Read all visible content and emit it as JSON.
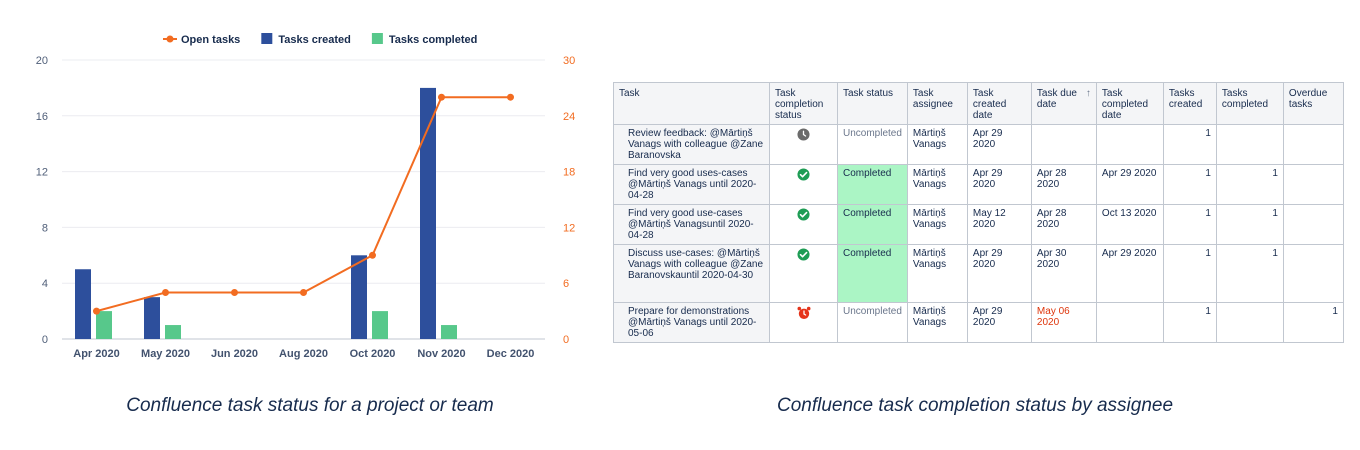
{
  "chart_data": {
    "type": "bar",
    "categories": [
      "Apr 2020",
      "May 2020",
      "Jun 2020",
      "Aug 2020",
      "Oct 2020",
      "Nov 2020",
      "Dec 2020"
    ],
    "series": [
      {
        "name": "Tasks created",
        "type": "bar",
        "axis": "left",
        "values": [
          5,
          3,
          0,
          0,
          6,
          18,
          0
        ],
        "color": "#2d4f9c"
      },
      {
        "name": "Tasks completed",
        "type": "bar",
        "axis": "left",
        "values": [
          2,
          1,
          0,
          0,
          2,
          1,
          0
        ],
        "color": "#57c88b"
      },
      {
        "name": "Open tasks",
        "type": "line",
        "axis": "right",
        "values": [
          3,
          5,
          5,
          5,
          9,
          26,
          26
        ],
        "color": "#f26c21"
      }
    ],
    "legend_order": [
      "Open tasks",
      "Tasks created",
      "Tasks completed"
    ],
    "legend_position": "top-center",
    "ylim_left": [
      0,
      20
    ],
    "yticks_left": [
      0,
      4,
      8,
      12,
      16,
      20
    ],
    "ylim_right": [
      0,
      30
    ],
    "yticks_right": [
      0,
      6,
      12,
      18,
      24,
      30
    ],
    "grid": true
  },
  "captions": {
    "left": "Confluence task status for a project or team",
    "right": "Confluence task completion status by assignee"
  },
  "table": {
    "headers": {
      "task": "Task",
      "completion": "Task completion status",
      "status": "Task status",
      "assignee": "Task assignee",
      "created": "Task created date",
      "due": "Task due date",
      "sort_arrow": "↑",
      "completed_date": "Task completed date",
      "tasks_created": "Tasks created",
      "tasks_completed": "Tasks completed",
      "overdue": "Overdue tasks"
    },
    "rows": [
      {
        "task": "Review feedback: @Mārtiņš Vanags with colleague @Zane Baranovska",
        "icon": "clock-icon",
        "status": "Uncompleted",
        "assignee": "Mārtiņš Vanags",
        "created": "Apr 29 2020",
        "due": "",
        "completed_date": "",
        "tasks_created": "1",
        "tasks_completed": "",
        "overdue": ""
      },
      {
        "task": "Find very good uses-cases @Mārtiņš Vanags until 2020-04-28",
        "icon": "check-circle-icon",
        "status": "Completed",
        "assignee": "Mārtiņš Vanags",
        "created": "Apr 29 2020",
        "due": "Apr 28 2020",
        "completed_date": "Apr 29 2020",
        "tasks_created": "1",
        "tasks_completed": "1",
        "overdue": ""
      },
      {
        "task": "Find very good use-cases @Mārtiņš Vanagsuntil 2020-04-28",
        "icon": "check-circle-icon",
        "status": "Completed",
        "assignee": "Mārtiņš Vanags",
        "created": "May 12 2020",
        "due": "Apr 28 2020",
        "completed_date": "Oct 13 2020",
        "tasks_created": "1",
        "tasks_completed": "1",
        "overdue": ""
      },
      {
        "task": "Discuss use-cases: @Mārtiņš Vanags with colleague @Zane Baranovskauntil  2020-04-30",
        "icon": "check-circle-icon",
        "status": "Completed",
        "assignee": "Mārtiņš Vanags",
        "created": "Apr 29 2020",
        "due": "Apr 30 2020",
        "completed_date": "Apr 29 2020",
        "tasks_created": "1",
        "tasks_completed": "1",
        "overdue": ""
      },
      {
        "task": "Prepare for demonstrations @Mārtiņš Vanags until  2020-05-06",
        "icon": "alarm-clock-icon",
        "status": "Uncompleted",
        "assignee": "Mārtiņš Vanags",
        "created": "Apr 29 2020",
        "due": "May 06 2020",
        "due_overdue": true,
        "completed_date": "",
        "tasks_created": "1",
        "tasks_completed": "",
        "overdue": "1"
      }
    ]
  },
  "colors": {
    "completed_bg": "#abf5c5",
    "overdue_text": "#de350b",
    "check_green": "#1f9d55",
    "alarm_red": "#e5341b",
    "clock_gray": "#6b6b6b"
  }
}
